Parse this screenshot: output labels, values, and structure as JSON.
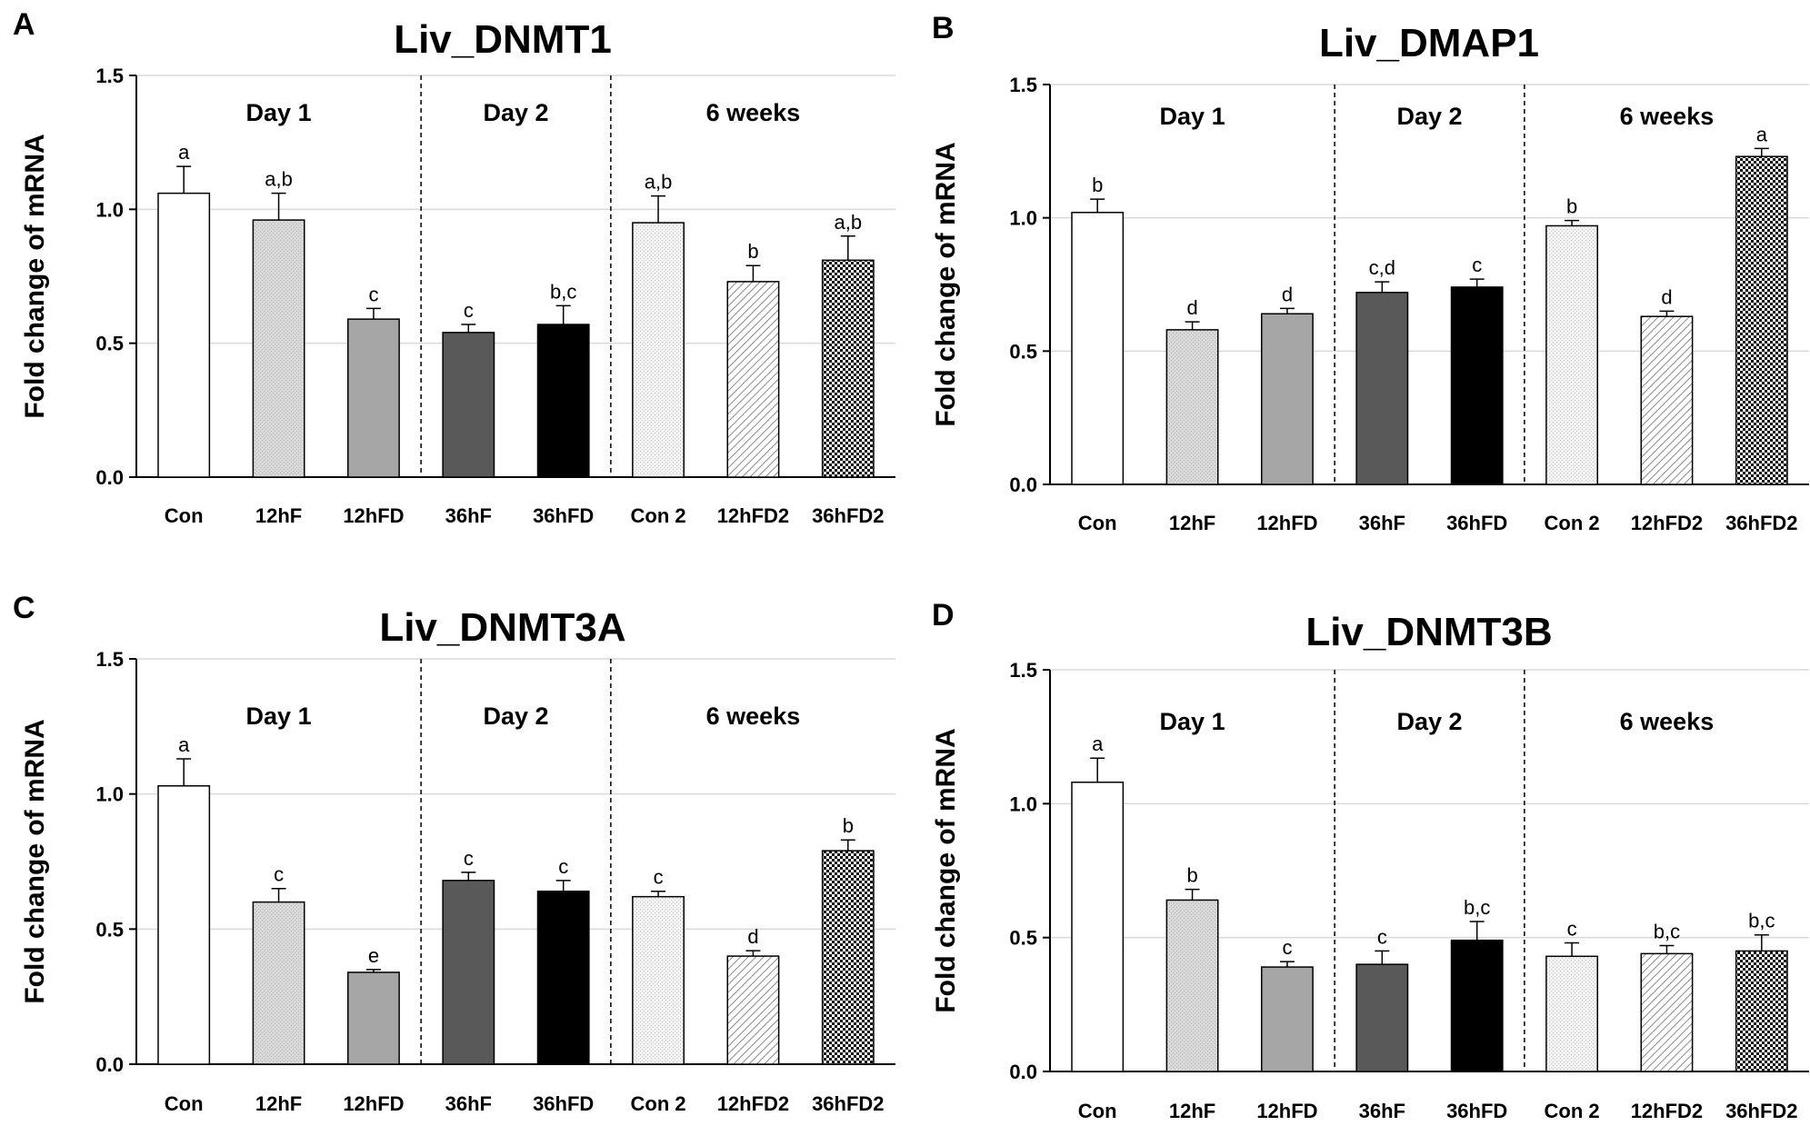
{
  "figure": {
    "y_axis_label": "Fold change of mRNA"
  },
  "styles": {
    "Con": "white",
    "12hF": "dotlight",
    "12hFD": "gray",
    "36hF": "darkgray",
    "36hFD": "black",
    "Con 2": "dotfine",
    "12hFD2": "hatch",
    "36hFD2": "check"
  },
  "chart_data": [
    {
      "panel": "A",
      "type": "bar",
      "title": "Liv_DNMT1",
      "ylabel": "Fold change of mRNA",
      "ylim": [
        0,
        1.5
      ],
      "yticks": [
        "0.0",
        "0.5",
        "1.0",
        "1.5"
      ],
      "ytick_values": [
        0,
        0.5,
        1.0,
        1.5
      ],
      "groups": [
        "Day 1",
        "Day 2",
        "6 weeks"
      ],
      "categories": [
        "Con",
        "12hF",
        "12hFD",
        "36hF",
        "36hFD",
        "Con 2",
        "12hFD2",
        "36hFD2"
      ],
      "values": [
        1.06,
        0.96,
        0.59,
        0.54,
        0.57,
        0.95,
        0.73,
        0.81
      ],
      "errors": [
        0.1,
        0.1,
        0.04,
        0.03,
        0.07,
        0.1,
        0.06,
        0.09
      ],
      "letters": [
        "a",
        "a,b",
        "c",
        "c",
        "b,c",
        "a,b",
        "b",
        "a,b"
      ]
    },
    {
      "panel": "B",
      "type": "bar",
      "title": "Liv_DMAP1",
      "ylabel": "Fold change of mRNA",
      "ylim": [
        0,
        1.5
      ],
      "yticks": [
        "0.0",
        "0.5",
        "1.0",
        "1.5"
      ],
      "ytick_values": [
        0,
        0.5,
        1.0,
        1.5
      ],
      "groups": [
        "Day 1",
        "Day 2",
        "6 weeks"
      ],
      "categories": [
        "Con",
        "12hF",
        "12hFD",
        "36hF",
        "36hFD",
        "Con 2",
        "12hFD2",
        "36hFD2"
      ],
      "values": [
        1.02,
        0.58,
        0.64,
        0.72,
        0.74,
        0.97,
        0.63,
        1.23
      ],
      "errors": [
        0.05,
        0.03,
        0.02,
        0.04,
        0.03,
        0.02,
        0.02,
        0.03
      ],
      "letters": [
        "b",
        "d",
        "d",
        "c,d",
        "c",
        "b",
        "d",
        "a"
      ]
    },
    {
      "panel": "C",
      "type": "bar",
      "title": "Liv_DNMT3A",
      "ylabel": "Fold change of mRNA",
      "ylim": [
        0,
        1.5
      ],
      "yticks": [
        "0.0",
        "0.5",
        "1.0",
        "1.5"
      ],
      "ytick_values": [
        0,
        0.5,
        1.0,
        1.5
      ],
      "groups": [
        "Day 1",
        "Day 2",
        "6 weeks"
      ],
      "categories": [
        "Con",
        "12hF",
        "12hFD",
        "36hF",
        "36hFD",
        "Con 2",
        "12hFD2",
        "36hFD2"
      ],
      "values": [
        1.03,
        0.6,
        0.34,
        0.68,
        0.64,
        0.62,
        0.4,
        0.79
      ],
      "errors": [
        0.1,
        0.05,
        0.01,
        0.03,
        0.04,
        0.02,
        0.02,
        0.04
      ],
      "letters": [
        "a",
        "c",
        "e",
        "c",
        "c",
        "c",
        "d",
        "b"
      ]
    },
    {
      "panel": "D",
      "type": "bar",
      "title": "Liv_DNMT3B",
      "ylabel": "Fold change of mRNA",
      "ylim": [
        0,
        1.5
      ],
      "yticks": [
        "0.0",
        "0.5",
        "1.0",
        "1.5"
      ],
      "ytick_values": [
        0,
        0.5,
        1.0,
        1.5
      ],
      "groups": [
        "Day 1",
        "Day 2",
        "6 weeks"
      ],
      "categories": [
        "Con",
        "12hF",
        "12hFD",
        "36hF",
        "36hFD",
        "Con 2",
        "12hFD2",
        "36hFD2"
      ],
      "values": [
        1.08,
        0.64,
        0.39,
        0.4,
        0.49,
        0.43,
        0.44,
        0.45
      ],
      "errors": [
        0.09,
        0.04,
        0.02,
        0.05,
        0.07,
        0.05,
        0.03,
        0.06
      ],
      "letters": [
        "a",
        "b",
        "c",
        "c",
        "b,c",
        "c",
        "b,c",
        "b,c"
      ]
    }
  ]
}
